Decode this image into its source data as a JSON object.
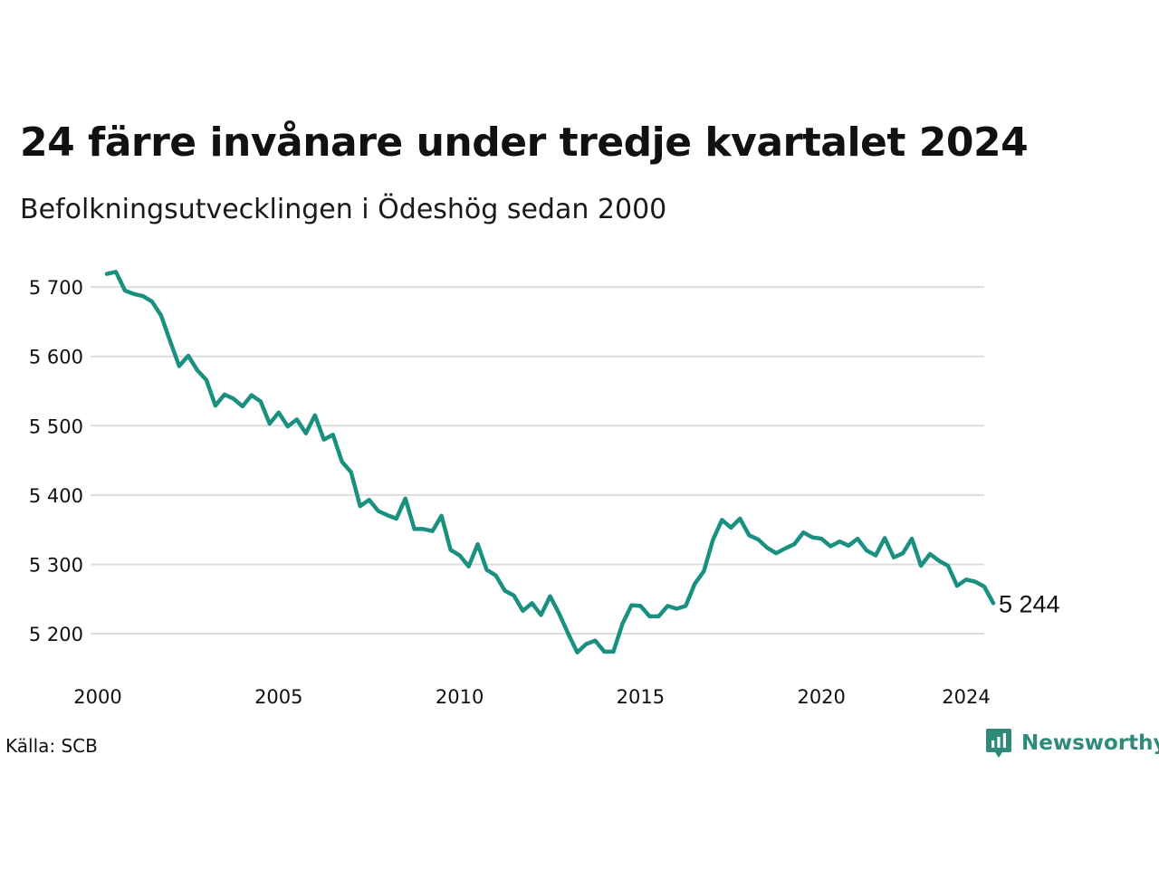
{
  "title": "24 färre invånare under tredje kvartalet 2024",
  "subtitle": "Befolkningsutvecklingen i Ödeshög sedan 2000",
  "source": "Källa: SCB",
  "brand": {
    "name": "Newsworthy",
    "icon": "newsworthy-logo-icon",
    "color": "#2e8b7a"
  },
  "colors": {
    "line": "#1a9080",
    "grid": "#dddddd",
    "text": "#111111"
  },
  "chart_data": {
    "type": "line",
    "title": "24 färre invånare under tredje kvartalet 2024",
    "subtitle": "Befolkningsutvecklingen i Ödeshög sedan 2000",
    "xlabel": "",
    "ylabel": "",
    "xlim": [
      2000.0,
      2024.5
    ],
    "ylim": [
      5170,
      5725
    ],
    "grid": true,
    "yticks": [
      5200,
      5300,
      5400,
      5500,
      5600,
      5700
    ],
    "ytick_labels": [
      "5 200",
      "5 300",
      "5 400",
      "5 500",
      "5 600",
      "5 700"
    ],
    "xticks": [
      2000,
      2005,
      2010,
      2015,
      2020,
      2024
    ],
    "xtick_labels": [
      "2000",
      "2005",
      "2010",
      "2015",
      "2020",
      "2024"
    ],
    "end_label": "5 244",
    "series": [
      {
        "x_start": 2000.25,
        "x_step": 0.25,
        "values": [
          5719,
          5722,
          5695,
          5690,
          5687,
          5679,
          5659,
          5622,
          5586,
          5601,
          5580,
          5566,
          5529,
          5545,
          5539,
          5528,
          5544,
          5535,
          5503,
          5519,
          5499,
          5509,
          5489,
          5515,
          5480,
          5487,
          5448,
          5433,
          5384,
          5393,
          5377,
          5371,
          5366,
          5395,
          5351,
          5351,
          5348,
          5370,
          5321,
          5313,
          5297,
          5329,
          5292,
          5284,
          5262,
          5255,
          5233,
          5244,
          5227,
          5254,
          5229,
          5200,
          5173,
          5185,
          5190,
          5174,
          5174,
          5214,
          5241,
          5240,
          5225,
          5225,
          5240,
          5236,
          5240,
          5272,
          5290,
          5335,
          5364,
          5353,
          5366,
          5342,
          5336,
          5324,
          5316,
          5323,
          5329,
          5346,
          5339,
          5337,
          5326,
          5333,
          5327,
          5337,
          5320,
          5313,
          5338,
          5310,
          5316,
          5337,
          5298,
          5315,
          5305,
          5298,
          5269,
          5278,
          5275,
          5268,
          5244
        ]
      }
    ]
  }
}
